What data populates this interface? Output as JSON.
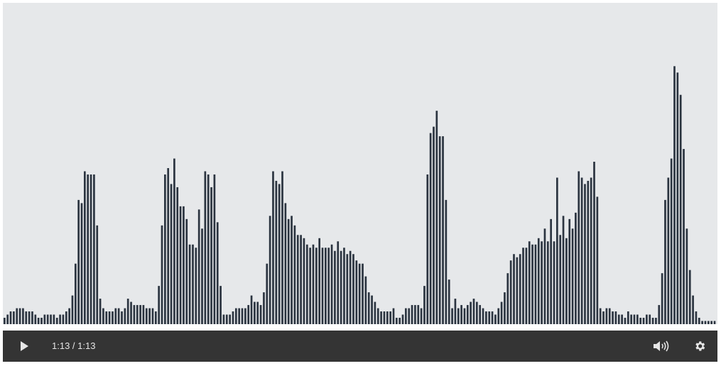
{
  "waveform": {
    "bar_color": "#2b3440",
    "background": "#e6e8ea",
    "levels": [
      0.02,
      0.03,
      0.04,
      0.04,
      0.05,
      0.05,
      0.05,
      0.04,
      0.04,
      0.04,
      0.03,
      0.02,
      0.02,
      0.03,
      0.03,
      0.03,
      0.03,
      0.02,
      0.03,
      0.03,
      0.04,
      0.05,
      0.09,
      0.19,
      0.39,
      0.38,
      0.48,
      0.47,
      0.47,
      0.47,
      0.31,
      0.08,
      0.05,
      0.04,
      0.04,
      0.04,
      0.05,
      0.05,
      0.04,
      0.05,
      0.08,
      0.07,
      0.06,
      0.06,
      0.06,
      0.06,
      0.05,
      0.05,
      0.05,
      0.04,
      0.12,
      0.31,
      0.47,
      0.49,
      0.44,
      0.52,
      0.43,
      0.37,
      0.37,
      0.33,
      0.25,
      0.25,
      0.24,
      0.36,
      0.3,
      0.48,
      0.47,
      0.43,
      0.47,
      0.32,
      0.12,
      0.03,
      0.03,
      0.03,
      0.04,
      0.05,
      0.05,
      0.05,
      0.05,
      0.06,
      0.09,
      0.07,
      0.07,
      0.06,
      0.1,
      0.19,
      0.34,
      0.48,
      0.45,
      0.44,
      0.48,
      0.38,
      0.33,
      0.34,
      0.31,
      0.28,
      0.28,
      0.27,
      0.25,
      0.24,
      0.25,
      0.24,
      0.27,
      0.24,
      0.24,
      0.24,
      0.25,
      0.23,
      0.26,
      0.23,
      0.24,
      0.22,
      0.23,
      0.22,
      0.2,
      0.19,
      0.19,
      0.15,
      0.1,
      0.09,
      0.07,
      0.05,
      0.04,
      0.04,
      0.04,
      0.04,
      0.05,
      0.02,
      0.02,
      0.03,
      0.05,
      0.05,
      0.06,
      0.06,
      0.06,
      0.05,
      0.12,
      0.47,
      0.6,
      0.62,
      0.67,
      0.59,
      0.59,
      0.39,
      0.14,
      0.05,
      0.08,
      0.05,
      0.06,
      0.05,
      0.06,
      0.07,
      0.08,
      0.07,
      0.06,
      0.05,
      0.04,
      0.04,
      0.04,
      0.03,
      0.05,
      0.07,
      0.1,
      0.16,
      0.2,
      0.22,
      0.21,
      0.22,
      0.24,
      0.24,
      0.26,
      0.25,
      0.25,
      0.27,
      0.26,
      0.3,
      0.26,
      0.33,
      0.26,
      0.46,
      0.28,
      0.34,
      0.27,
      0.33,
      0.3,
      0.35,
      0.48,
      0.46,
      0.44,
      0.45,
      0.46,
      0.51,
      0.4,
      0.05,
      0.04,
      0.05,
      0.05,
      0.04,
      0.04,
      0.03,
      0.03,
      0.02,
      0.04,
      0.03,
      0.03,
      0.03,
      0.02,
      0.02,
      0.03,
      0.03,
      0.02,
      0.02,
      0.06,
      0.16,
      0.39,
      0.46,
      0.52,
      0.81,
      0.79,
      0.72,
      0.55,
      0.3,
      0.17,
      0.09,
      0.04,
      0.02,
      0.01,
      0.01,
      0.01,
      0.01,
      0.01
    ]
  },
  "player": {
    "time_text": "1:13 / 1:13",
    "icon_color": "#e6e6e6",
    "icons": {
      "play": "play-icon",
      "volume": "volume-icon",
      "settings": "gear-icon"
    }
  }
}
